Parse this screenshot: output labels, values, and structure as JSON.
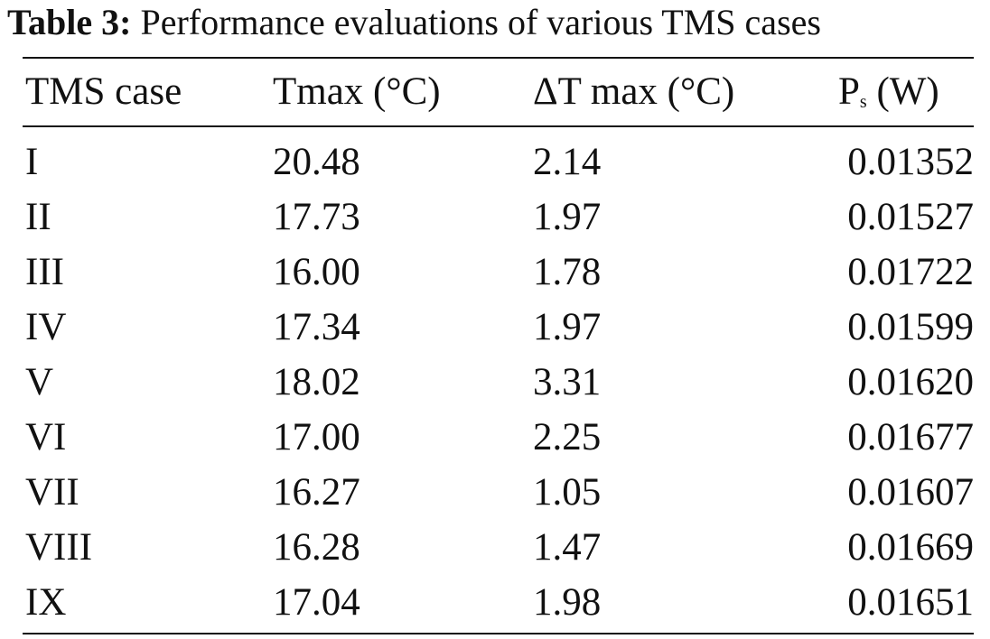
{
  "caption": {
    "label": "Table 3:",
    "text": "Performance evaluations of various TMS cases"
  },
  "table": {
    "header": [
      "TMS case",
      "Tmax (°C)",
      "ΔT max (°C)",
      {
        "main": "P",
        "sub": "s",
        "unit": "(W)"
      }
    ],
    "rows": [
      [
        "I",
        "20.48",
        "2.14",
        "0.01352"
      ],
      [
        "II",
        "17.73",
        "1.97",
        "0.01527"
      ],
      [
        "III",
        "16.00",
        "1.78",
        "0.01722"
      ],
      [
        "IV",
        "17.34",
        "1.97",
        "0.01599"
      ],
      [
        "V",
        "18.02",
        "3.31",
        "0.01620"
      ],
      [
        "VI",
        "17.00",
        "2.25",
        "0.01677"
      ],
      [
        "VII",
        "16.27",
        "1.05",
        "0.01607"
      ],
      [
        "VIII",
        "16.28",
        "1.47",
        "0.01669"
      ],
      [
        "IX",
        "17.04",
        "1.98",
        "0.01651"
      ]
    ]
  }
}
